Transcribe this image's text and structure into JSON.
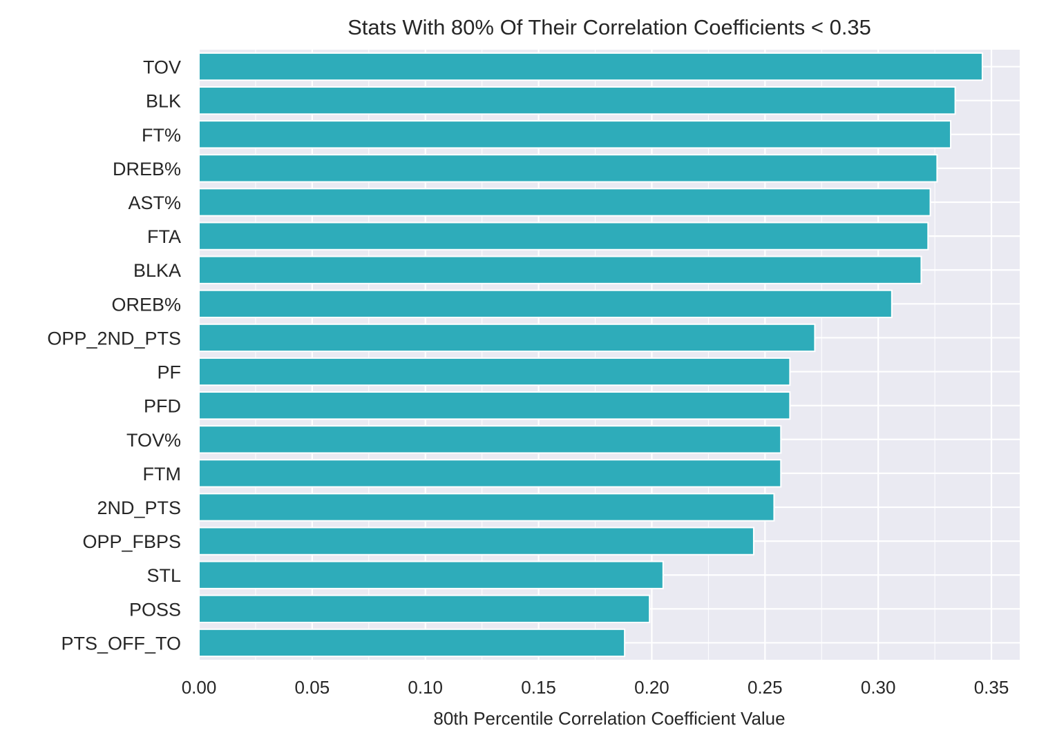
{
  "chart_data": {
    "type": "bar",
    "orientation": "horizontal",
    "title": "Stats With 80% Of Their Correlation Coefficients < 0.35",
    "xlabel": "80th Percentile Correlation Coefficient Value",
    "ylabel": "",
    "xlim": [
      0,
      0.3625
    ],
    "grid": true,
    "categories": [
      "TOV",
      "BLK",
      "FT%",
      "DREB%",
      "AST%",
      "FTA",
      "BLKA",
      "OREB%",
      "OPP_2ND_PTS",
      "PF",
      "PFD",
      "TOV%",
      "FTM",
      "2ND_PTS",
      "OPP_FBPS",
      "STL",
      "POSS",
      "PTS_OFF_TO"
    ],
    "values": [
      0.346,
      0.334,
      0.332,
      0.326,
      0.323,
      0.322,
      0.319,
      0.306,
      0.272,
      0.261,
      0.261,
      0.257,
      0.257,
      0.254,
      0.245,
      0.205,
      0.199,
      0.188
    ],
    "xticks": [
      "0.00",
      "0.05",
      "0.10",
      "0.15",
      "0.20",
      "0.25",
      "0.30",
      "0.35"
    ],
    "bar_color": "#2eacba",
    "plot_background": "#eaeaf2",
    "grid_color": "#ffffff"
  }
}
